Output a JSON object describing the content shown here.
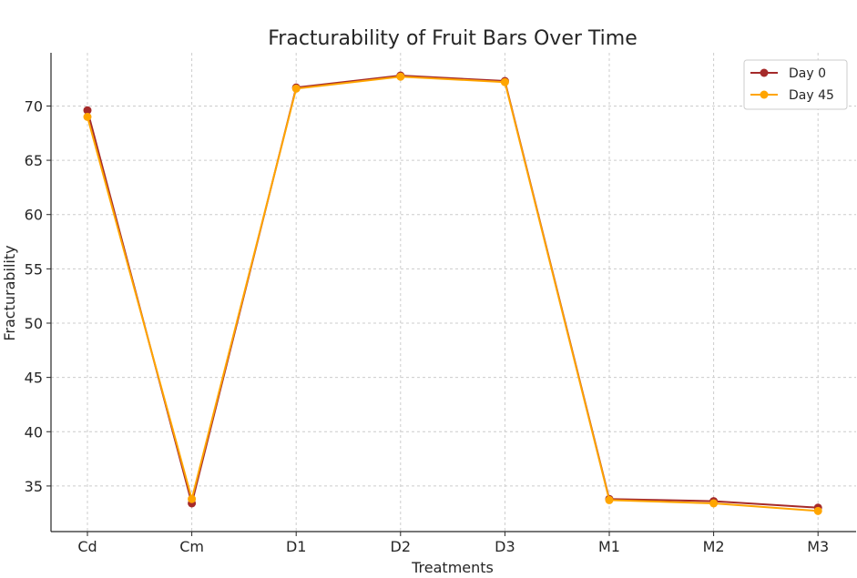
{
  "chart_data": {
    "type": "line",
    "title": "Fracturability of Fruit Bars Over Time",
    "xlabel": "Treatments",
    "ylabel": "Fracturability",
    "categories": [
      "Cd",
      "Cm",
      "D1",
      "D2",
      "D3",
      "M1",
      "M2",
      "M3"
    ],
    "series": [
      {
        "name": "Day 0",
        "color": "#a52a2a",
        "values": [
          69.6,
          33.4,
          71.7,
          72.8,
          72.3,
          33.8,
          33.6,
          33.0
        ]
      },
      {
        "name": "Day 45",
        "color": "#ffa500",
        "values": [
          69.0,
          33.8,
          71.6,
          72.7,
          72.2,
          33.7,
          33.4,
          32.7
        ]
      }
    ],
    "yticks": [
      35,
      40,
      45,
      50,
      55,
      60,
      65,
      70
    ],
    "ylim": [
      30.8,
      74.9
    ],
    "grid": true,
    "legend": "top-right"
  }
}
